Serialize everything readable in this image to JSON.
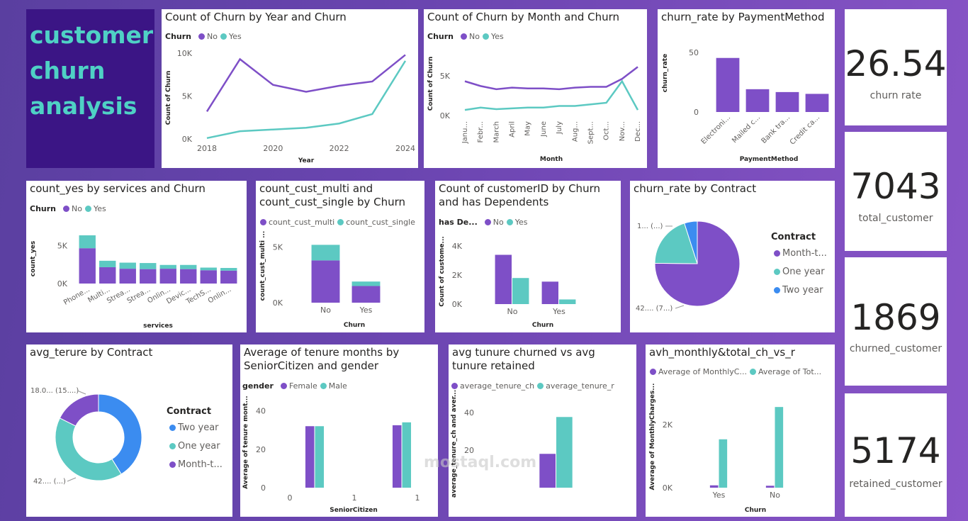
{
  "title": {
    "lines": [
      "customer",
      "churn",
      "analysis"
    ]
  },
  "colors": {
    "no": "#7e4fc7",
    "yes": "#5cc9c2",
    "twoyear": "#3b8cf0"
  },
  "kpis": [
    {
      "value": "26.54",
      "label": "churn rate"
    },
    {
      "value": "7043",
      "label": "total_customer"
    },
    {
      "value": "1869",
      "label": "churned_customer"
    },
    {
      "value": "5174",
      "label": "retained_customer"
    }
  ],
  "watermark": "mostaql.com",
  "chart_data": [
    {
      "id": "year",
      "type": "line",
      "title": "Count of Churn by Year and Churn",
      "legend_title": "Churn",
      "xlabel": "Year",
      "ylabel": "Count of Churn",
      "x": [
        2018,
        2019,
        2020,
        2021,
        2022,
        2023,
        2024
      ],
      "xticks": [
        "2018",
        "2020",
        "2022",
        "2024"
      ],
      "xtick_values": [
        2018,
        2020,
        2022,
        2024
      ],
      "yticks": [
        "0K",
        "5K",
        "10K"
      ],
      "ytick_values": [
        0,
        5000,
        10000
      ],
      "ylim": [
        0,
        10000
      ],
      "series": [
        {
          "name": "No",
          "values": [
            3200,
            9300,
            6300,
            5500,
            6200,
            6700,
            9800
          ]
        },
        {
          "name": "Yes",
          "values": [
            100,
            900,
            1100,
            1300,
            1800,
            2900,
            9100
          ]
        }
      ]
    },
    {
      "id": "month",
      "type": "line",
      "title": "Count of Churn by Month and Churn",
      "legend_title": "Churn",
      "xlabel": "Month",
      "ylabel": "Count of Churn",
      "categories": [
        "Janu...",
        "Febr...",
        "March",
        "April",
        "May",
        "June",
        "July",
        "Aug...",
        "Sept...",
        "Oct...",
        "Nov...",
        "Dec..."
      ],
      "yticks": [
        "0K",
        "5K"
      ],
      "ytick_values": [
        0,
        5000
      ],
      "ylim": [
        0,
        8000
      ],
      "series": [
        {
          "name": "No",
          "values": [
            4300,
            3700,
            3300,
            3500,
            3400,
            3400,
            3300,
            3500,
            3600,
            3600,
            4600,
            6100
          ]
        },
        {
          "name": "Yes",
          "values": [
            700,
            1000,
            800,
            900,
            1000,
            1000,
            1200,
            1200,
            1400,
            1600,
            4300,
            700
          ]
        }
      ]
    },
    {
      "id": "payment",
      "type": "bar",
      "title": "churn_rate by PaymentMethod",
      "xlabel": "PaymentMethod",
      "ylabel": "churn_rate",
      "categories": [
        "Electroni...",
        "Mailed c...",
        "Bank tra...",
        "Credit ca..."
      ],
      "yticks": [
        "0",
        "50"
      ],
      "ytick_values": [
        0,
        50
      ],
      "ylim": [
        0,
        60
      ],
      "series": [
        {
          "name": "",
          "values": [
            45.3,
            19.1,
            16.7,
            15.2
          ]
        }
      ]
    },
    {
      "id": "services",
      "type": "bar",
      "title": "count_yes by services and Churn",
      "legend_title": "Churn",
      "xlabel": "services",
      "ylabel": "count_yes",
      "stacked": true,
      "categories": [
        "Phone...",
        "Multi...",
        "Strea...",
        "Strea...",
        "Onlin...",
        "Devic...",
        "TechS...",
        "Onlin..."
      ],
      "yticks": [
        "0K",
        "5K"
      ],
      "ytick_values": [
        0,
        5000
      ],
      "ylim": [
        0,
        7000
      ],
      "series": [
        {
          "name": "No",
          "values": [
            4650,
            2150,
            1950,
            1900,
            1950,
            1900,
            1750,
            1700
          ]
        },
        {
          "name": "Yes",
          "values": [
            1700,
            850,
            800,
            800,
            500,
            550,
            350,
            350
          ]
        }
      ]
    },
    {
      "id": "multi",
      "type": "bar",
      "title": "count_cust_multi and count_cust_single by Churn",
      "xlabel": "Churn",
      "ylabel": "count_cust_multi ...",
      "stacked": true,
      "categories": [
        "No",
        "Yes"
      ],
      "yticks": [
        "0K",
        "5K"
      ],
      "ytick_values": [
        0,
        5000
      ],
      "ylim": [
        0,
        6500
      ],
      "series": [
        {
          "name": "count_cust_multi",
          "values": [
            3800,
            1500
          ]
        },
        {
          "name": "count_cust_single",
          "values": [
            1400,
            400
          ]
        }
      ]
    },
    {
      "id": "dependents",
      "type": "bar",
      "title": "Count of customerID by Churn and has Dependents",
      "legend_title": "has De...",
      "xlabel": "Churn",
      "ylabel": "Count of custome...",
      "categories": [
        "No",
        "Yes"
      ],
      "yticks": [
        "0K",
        "2K",
        "4K"
      ],
      "ytick_values": [
        0,
        2000,
        4000
      ],
      "ylim": [
        0,
        4500
      ],
      "series": [
        {
          "name": "No",
          "values": [
            3400,
            1550
          ]
        },
        {
          "name": "Yes",
          "values": [
            1800,
            320
          ]
        }
      ]
    },
    {
      "id": "contract_pie",
      "type": "pie",
      "title": "churn_rate by Contract",
      "legend_title": "Contract",
      "categories": [
        "Month-t...",
        "One year",
        "Two year"
      ],
      "values": [
        42.7,
        11.3,
        2.8
      ],
      "labels": [
        "42.... (7...)",
        "1... (...)"
      ]
    },
    {
      "id": "tenure_donut",
      "type": "pie",
      "title": "avg_terure by Contract",
      "legend_title": "Contract",
      "categories": [
        "Two year",
        "One year",
        "Month-t..."
      ],
      "values": [
        42.0,
        42.0,
        18.0
      ],
      "labels": [
        "18.0... (15....)",
        "42.... (...)"
      ]
    },
    {
      "id": "senior",
      "type": "bar",
      "title": "Average of tenure months by SeniorCitizen and gender",
      "legend_title": "gender",
      "xlabel": "SeniorCitizen",
      "ylabel": "Average of tenure mont...",
      "categories": [
        "0",
        "1"
      ],
      "xticks": [
        "0",
        "1",
        "1"
      ],
      "yticks": [
        "0",
        "20",
        "40"
      ],
      "ytick_values": [
        0,
        20,
        40
      ],
      "ylim": [
        0,
        45
      ],
      "series": [
        {
          "name": "Female",
          "values": [
            32.0,
            32.5
          ]
        },
        {
          "name": "Male",
          "values": [
            32.0,
            34.0
          ]
        }
      ]
    },
    {
      "id": "tenure_cmp",
      "type": "bar",
      "title": "avg tunure churned vs avg tunure retained",
      "xlabel": "",
      "ylabel": "average_tenure_ch and aver...",
      "categories": [
        ""
      ],
      "yticks": [
        "20",
        "40"
      ],
      "ytick_values": [
        20,
        40
      ],
      "ylim": [
        0,
        46
      ],
      "series": [
        {
          "name": "average_tenure_ch",
          "values": [
            18.0
          ]
        },
        {
          "name": "average_tenure_r",
          "values": [
            37.6
          ]
        }
      ]
    },
    {
      "id": "monthly",
      "type": "bar",
      "title": "avh_monthly&total_ch_vs_r",
      "xlabel": "Churn",
      "ylabel": "Average of MonthlyCharges...",
      "categories": [
        "Yes",
        "No"
      ],
      "yticks": [
        "0K",
        "2K"
      ],
      "ytick_values": [
        0,
        2000
      ],
      "ylim": [
        0,
        3300
      ],
      "series": [
        {
          "name": "Average of MonthlyC...",
          "values": [
            74.4,
            61.3
          ]
        },
        {
          "name": "Average of Tot...",
          "values": [
            1531.8,
            2555.3
          ]
        }
      ]
    }
  ]
}
